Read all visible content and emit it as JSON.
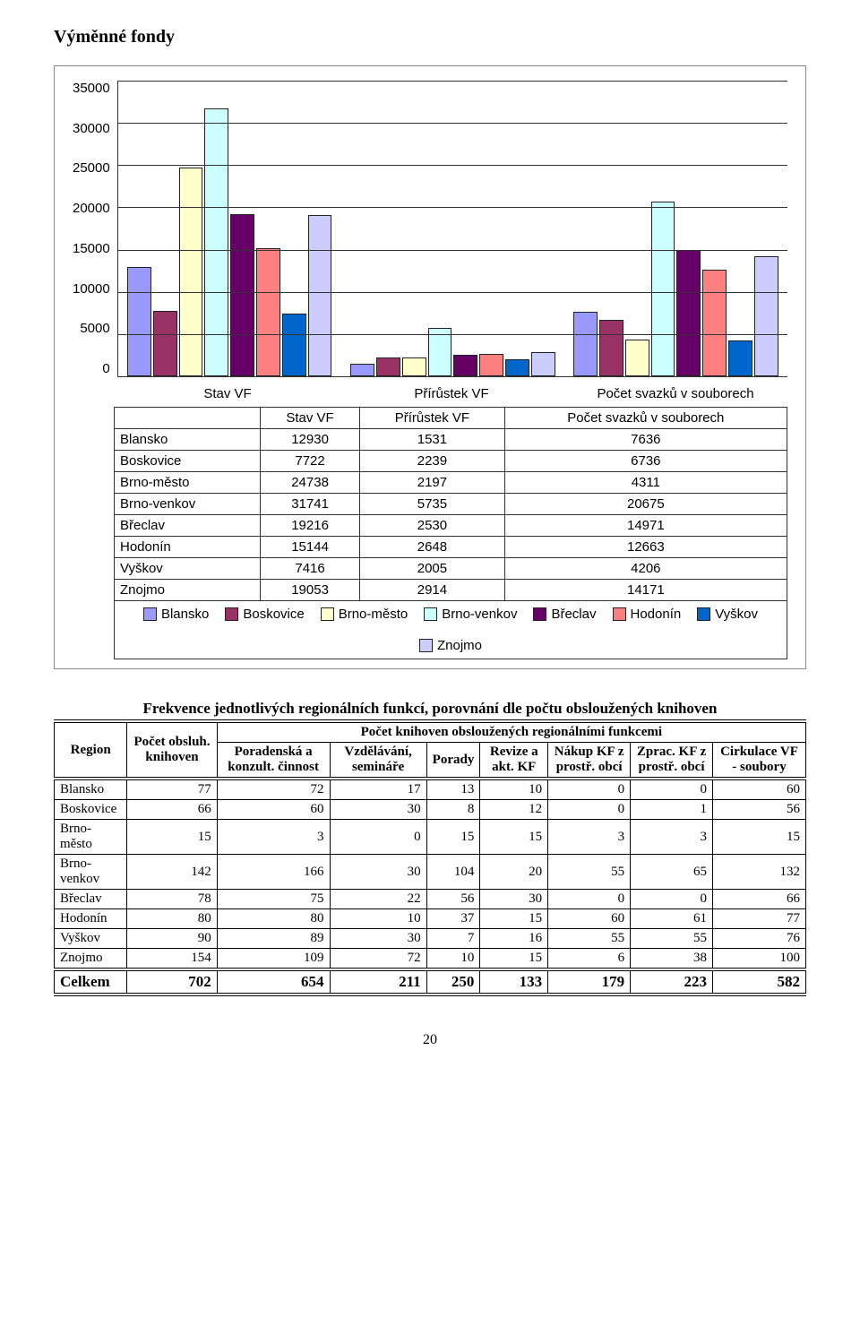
{
  "title": "Výměnné fondy",
  "chart": {
    "series_colors": {
      "Blansko": "#9999ff",
      "Boskovice": "#993366",
      "Brno-město": "#ffffcc",
      "Brno-venkov": "#ccffff",
      "Břeclav": "#660066",
      "Hodonín": "#ff8080",
      "Vyškov": "#0066cc",
      "Znojmo": "#ccccff"
    },
    "ymax": 35000,
    "yticks": [
      "35000",
      "30000",
      "25000",
      "20000",
      "15000",
      "10000",
      "5000",
      "0"
    ],
    "groups": [
      "Stav VF",
      "Přírůstek VF",
      "Počet svazků v souborech"
    ],
    "rows": [
      {
        "region": "Blansko",
        "vals": [
          12930,
          1531,
          7636
        ]
      },
      {
        "region": "Boskovice",
        "vals": [
          7722,
          2239,
          6736
        ]
      },
      {
        "region": "Brno-město",
        "vals": [
          24738,
          2197,
          4311
        ]
      },
      {
        "region": "Brno-venkov",
        "vals": [
          31741,
          5735,
          20675
        ]
      },
      {
        "region": "Břeclav",
        "vals": [
          19216,
          2530,
          14971
        ]
      },
      {
        "region": "Hodonín",
        "vals": [
          15144,
          2648,
          12663
        ]
      },
      {
        "region": "Vyškov",
        "vals": [
          7416,
          2005,
          4206
        ]
      },
      {
        "region": "Znojmo",
        "vals": [
          19053,
          2914,
          14171
        ]
      }
    ]
  },
  "subhead": "Frekvence jednotlivých regionálních funkcí, porovnání dle počtu obsloužených knihoven",
  "table": {
    "head": {
      "region": "Region",
      "count": "Počet obsluh. knihoven",
      "span": "Počet knihoven obsloužených regionálními funkcemi",
      "cols": [
        "Poradenská a konzult. činnost",
        "Vzdělávání, semináře",
        "Porady",
        "Revize a akt. KF",
        "Nákup KF z prostř. obcí",
        "Zprac. KF z prostř. obcí",
        "Cirkulace VF - soubory"
      ]
    },
    "rows": [
      {
        "r": "Blansko",
        "c": [
          77,
          72,
          17,
          13,
          10,
          0,
          0,
          60
        ]
      },
      {
        "r": "Boskovice",
        "c": [
          66,
          60,
          30,
          8,
          12,
          0,
          1,
          56
        ]
      },
      {
        "r": "Brno-město",
        "c": [
          15,
          3,
          0,
          15,
          15,
          3,
          3,
          15
        ]
      },
      {
        "r": "Brno-venkov",
        "c": [
          142,
          166,
          30,
          104,
          20,
          55,
          65,
          132
        ]
      },
      {
        "r": "Břeclav",
        "c": [
          78,
          75,
          22,
          56,
          30,
          0,
          0,
          66
        ]
      },
      {
        "r": "Hodonín",
        "c": [
          80,
          80,
          10,
          37,
          15,
          60,
          61,
          77
        ]
      },
      {
        "r": "Vyškov",
        "c": [
          90,
          89,
          30,
          7,
          16,
          55,
          55,
          76
        ]
      },
      {
        "r": "Znojmo",
        "c": [
          154,
          109,
          72,
          10,
          15,
          6,
          38,
          100
        ]
      }
    ],
    "total": {
      "label": "Celkem",
      "c": [
        702,
        654,
        211,
        250,
        133,
        179,
        223,
        582
      ]
    }
  },
  "pagenum": "20"
}
